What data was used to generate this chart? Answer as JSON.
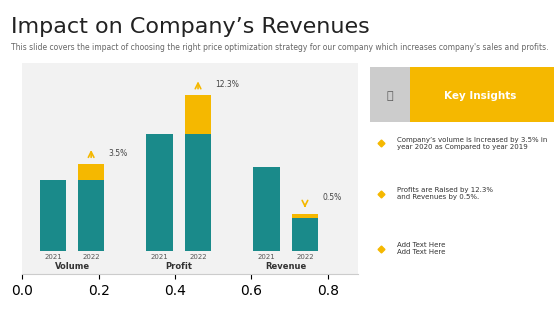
{
  "title": "Impact on Company’s Revenues",
  "subtitle": "This slide covers the impact of choosing the right price optimization strategy for our company which increases company's sales and profits.",
  "title_fontsize": 16,
  "subtitle_fontsize": 5.5,
  "bg_color": "#ffffff",
  "chart_bg": "#f9f9f9",
  "teal_color": "#1a8a8a",
  "gold_color": "#f5b800",
  "groups": [
    "Volume",
    "Profit",
    "Revenue"
  ],
  "years": [
    "2021",
    "2022"
  ],
  "bars": {
    "Volume": {
      "base_2021": 55,
      "base_2022": 55,
      "extra_2022": 12
    },
    "Profit": {
      "base_2021": 90,
      "base_2022": 90,
      "extra_2022": 30
    },
    "Revenue": {
      "base_2021": 65,
      "base_2022": 25,
      "extra_2022": 3
    }
  },
  "annotations": {
    "Volume": {
      "label": "3.5%",
      "arrow_up": true
    },
    "Profit": {
      "label": "12.3%",
      "arrow_up": true
    },
    "Revenue": {
      "label": "0.5%",
      "arrow_up": false
    }
  },
  "key_insights_title": "Key Insights",
  "key_insights_bg": "#f5b800",
  "insights": [
    {
      "text": "Company’s volume is Increased by ",
      "highlight": "3.5%",
      "rest": " in\nyear 2020 as Compared to year 2019"
    },
    {
      "text": "Profits are Raised by ",
      "highlight": "12.3%",
      "rest": "\nand Revenues by ",
      "highlight2": "0.5%."
    },
    {
      "text": "Add Text Here\nAdd Text Here",
      "highlight": null,
      "rest": ""
    }
  ],
  "bottom_bar_color": "#f5b800",
  "top_bar_color": "#0d7a7a",
  "footer_color": "#f5b800"
}
